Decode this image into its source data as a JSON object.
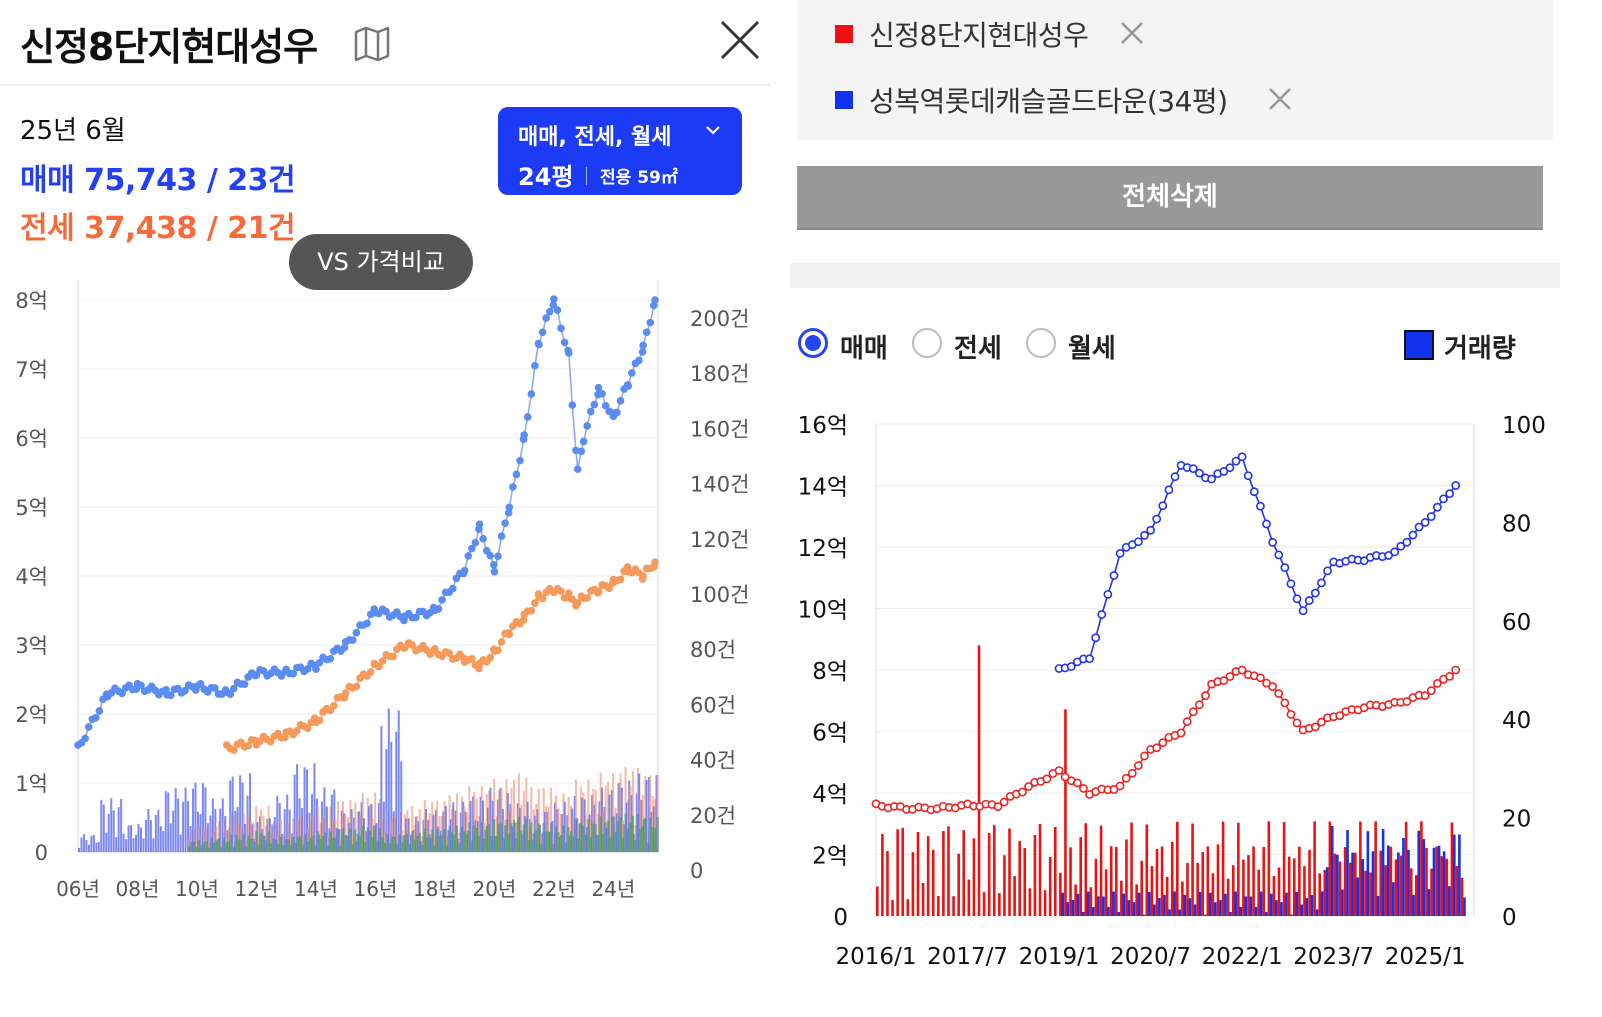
{
  "left": {
    "title": "신정8단지현대성우",
    "month": "25년 6월",
    "sale_summary": "매매 75,743 / 23건",
    "jeonse_summary": "전세 37,438 / 21건",
    "filter": {
      "types": "매매, 전세, 월세",
      "size": "24평",
      "area": "전용 59㎡"
    },
    "vs_button": "VS 가격비교"
  },
  "right": {
    "legend": [
      {
        "label": "신정8단지현대성우",
        "color": "#ee1111"
      },
      {
        "label": "성복역롯데캐슬골드타운(34평)",
        "color": "#1133ee"
      }
    ],
    "delete_all": "전체삭제",
    "radios": [
      {
        "label": "매매",
        "selected": true
      },
      {
        "label": "전세",
        "selected": false
      },
      {
        "label": "월세",
        "selected": false
      }
    ],
    "volume_toggle": "거래량"
  },
  "colors": {
    "accent_blue": "#1d3af5",
    "sale_blue": "#2540f0",
    "jeonse_orange": "#f56a3a"
  },
  "chart_data": [
    {
      "type": "line",
      "y_left_ticks": [
        "8억",
        "7억",
        "6억",
        "5억",
        "4억",
        "3억",
        "2억",
        "1억",
        "0"
      ],
      "y_right_ticks": [
        "200건",
        "180건",
        "160건",
        "140건",
        "120건",
        "100건",
        "80건",
        "60건",
        "40건",
        "20건",
        "0"
      ],
      "x_ticks": [
        "06년",
        "08년",
        "10년",
        "12년",
        "14년",
        "16년",
        "18년",
        "20년",
        "22년",
        "24년"
      ],
      "ylim": [
        0,
        8
      ],
      "y2lim": [
        0,
        200
      ],
      "x": [
        2006.0,
        2007.0,
        2008.0,
        2009.0,
        2010.0,
        2011.0,
        2012.0,
        2013.0,
        2014.0,
        2015.0,
        2016.0,
        2017.0,
        2018.0,
        2019.0,
        2019.5,
        2020.0,
        2020.5,
        2021.0,
        2021.5,
        2022.0,
        2022.5,
        2022.8,
        2023.0,
        2023.5,
        2024.0,
        2024.5,
        2025.0,
        2025.4
      ],
      "series": [
        {
          "name": "매매",
          "values": [
            1.5,
            2.3,
            2.4,
            2.3,
            2.4,
            2.3,
            2.6,
            2.6,
            2.7,
            3.0,
            3.5,
            3.4,
            3.5,
            4.1,
            4.7,
            4.1,
            5.0,
            6.0,
            7.4,
            8.0,
            7.2,
            5.5,
            6.0,
            6.7,
            6.3,
            6.8,
            7.3,
            8.0
          ]
        },
        {
          "name": "전세",
          "values": [
            null,
            null,
            null,
            null,
            null,
            1.5,
            1.6,
            1.7,
            1.9,
            2.3,
            2.7,
            3.0,
            2.9,
            2.8,
            2.7,
            2.9,
            3.2,
            3.4,
            3.7,
            3.8,
            3.7,
            3.6,
            3.7,
            3.8,
            3.9,
            4.1,
            4.0,
            4.2
          ]
        }
      ],
      "volume_sale": [
        5,
        15,
        8,
        12,
        18,
        20,
        15,
        22,
        10,
        16,
        25,
        18,
        12,
        14,
        40,
        10,
        12,
        14,
        16,
        18,
        14,
        12,
        14,
        16,
        18,
        20,
        22,
        24
      ],
      "volume_jeonse": [
        0,
        0,
        0,
        0,
        0,
        8,
        10,
        12,
        14,
        10,
        12,
        14,
        16,
        18,
        12,
        14,
        16,
        18,
        20,
        22,
        24,
        20,
        18,
        22,
        24,
        26,
        24,
        22
      ]
    },
    {
      "type": "line",
      "y_left_ticks": [
        "16억",
        "14억",
        "12억",
        "10억",
        "8억",
        "6억",
        "4억",
        "2억",
        "0"
      ],
      "y_right_ticks": [
        "100",
        "80",
        "60",
        "40",
        "20",
        "0"
      ],
      "x_ticks": [
        "2016/1",
        "2017/7",
        "2019/1",
        "2020/7",
        "2022/1",
        "2023/7",
        "2025/1"
      ],
      "ylim": [
        0,
        16
      ],
      "y2lim": [
        0,
        100
      ],
      "x": [
        2016.0,
        2016.5,
        2017.0,
        2017.5,
        2018.0,
        2018.5,
        2019.0,
        2019.5,
        2020.0,
        2020.5,
        2021.0,
        2021.5,
        2022.0,
        2022.5,
        2023.0,
        2023.5,
        2024.0,
        2024.5,
        2025.0,
        2025.5
      ],
      "series": [
        {
          "name": "신정8단지현대성우",
          "values": [
            3.6,
            3.5,
            3.5,
            3.6,
            3.6,
            4.2,
            4.7,
            4.0,
            4.2,
            5.4,
            6.0,
            7.5,
            8.0,
            7.5,
            6.0,
            6.5,
            6.8,
            6.9,
            7.2,
            8.0
          ]
        },
        {
          "name": "성복역롯데캐슬골드타운(34평)",
          "values": [
            null,
            null,
            null,
            null,
            null,
            null,
            8.0,
            8.4,
            11.8,
            12.5,
            14.7,
            14.2,
            14.9,
            12.2,
            9.9,
            11.5,
            11.6,
            11.8,
            12.8,
            14.0
          ]
        }
      ]
    }
  ]
}
